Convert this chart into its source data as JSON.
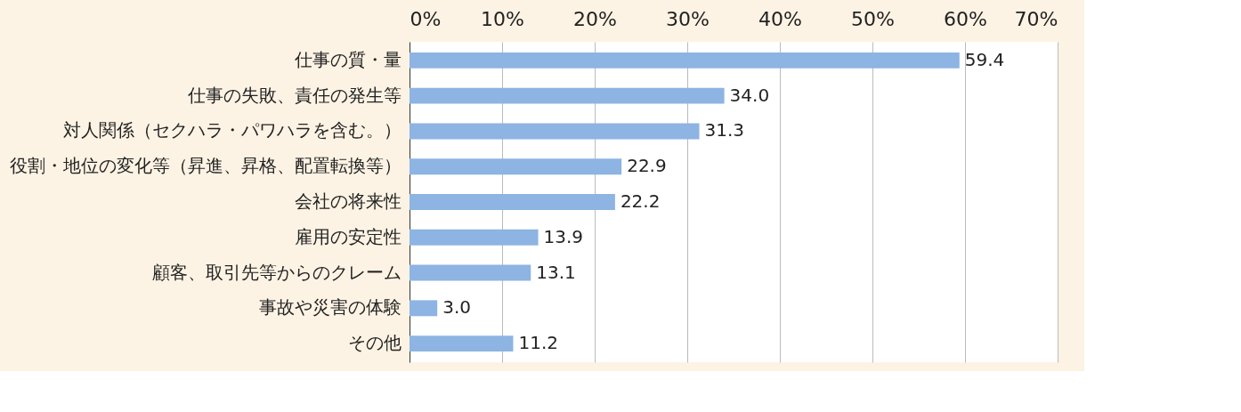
{
  "chart_data": {
    "type": "bar",
    "orientation": "horizontal",
    "categories": [
      "仕事の質・量",
      "仕事の失敗、責任の発生等",
      "対人関係（セクハラ・パワハラを含む。）",
      "役割・地位の変化等（昇進、昇格、配置転換等）",
      "会社の将来性",
      "雇用の安定性",
      "顧客、取引先等からのクレーム",
      "事故や災害の体験",
      "その他"
    ],
    "values": [
      59.4,
      34.0,
      31.3,
      22.9,
      22.2,
      13.9,
      13.1,
      3.0,
      11.2
    ],
    "color": "#8db4e2",
    "xlim": [
      0,
      70
    ],
    "xticks": [
      {
        "value": 0,
        "label": "0%"
      },
      {
        "value": 10,
        "label": "10%"
      },
      {
        "value": 20,
        "label": "20%"
      },
      {
        "value": 30,
        "label": "30%"
      },
      {
        "value": 40,
        "label": "40%"
      },
      {
        "value": 50,
        "label": "50%"
      },
      {
        "value": 60,
        "label": "60%"
      },
      {
        "value": 70,
        "label": "70%"
      }
    ],
    "value_labels": [
      "59.4",
      "34.0",
      "31.3",
      "22.9",
      "22.2",
      "13.9",
      "13.1",
      "3.0",
      "11.2"
    ],
    "grid": "x"
  }
}
